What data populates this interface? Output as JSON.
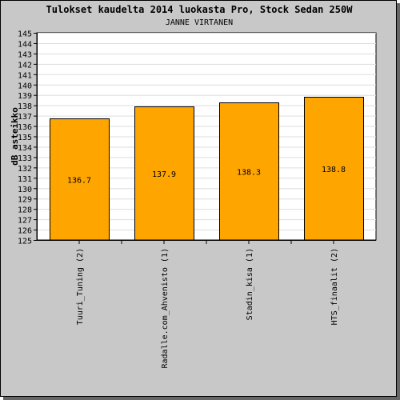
{
  "chart_data": {
    "type": "bar",
    "title": "Tulokset kaudelta 2014 luokasta Pro, Stock Sedan 250W",
    "subtitle": "JANNE VIRTANEN",
    "xlabel": "",
    "ylabel": "dB asteikko",
    "categories": [
      "Tuuri_Tuning (2)",
      "Radalle.com_Ahvenisto (1)",
      "Stadin_kisa (1)",
      "HTS_finaalit (2)"
    ],
    "values": [
      136.7,
      137.9,
      138.3,
      138.8
    ],
    "value_labels": [
      "136.7",
      "137.9",
      "138.3",
      "138.8"
    ],
    "ylim": [
      125,
      145
    ],
    "yticks": [
      "125",
      "126",
      "127",
      "128",
      "129",
      "130",
      "131",
      "132",
      "133",
      "134",
      "135",
      "136",
      "137",
      "138",
      "139",
      "140",
      "141",
      "142",
      "143",
      "144",
      "145"
    ],
    "grid": true,
    "bar_color": "#ffa500",
    "plot_background": "#ffffff",
    "frame_background": "#c8c8c8"
  }
}
